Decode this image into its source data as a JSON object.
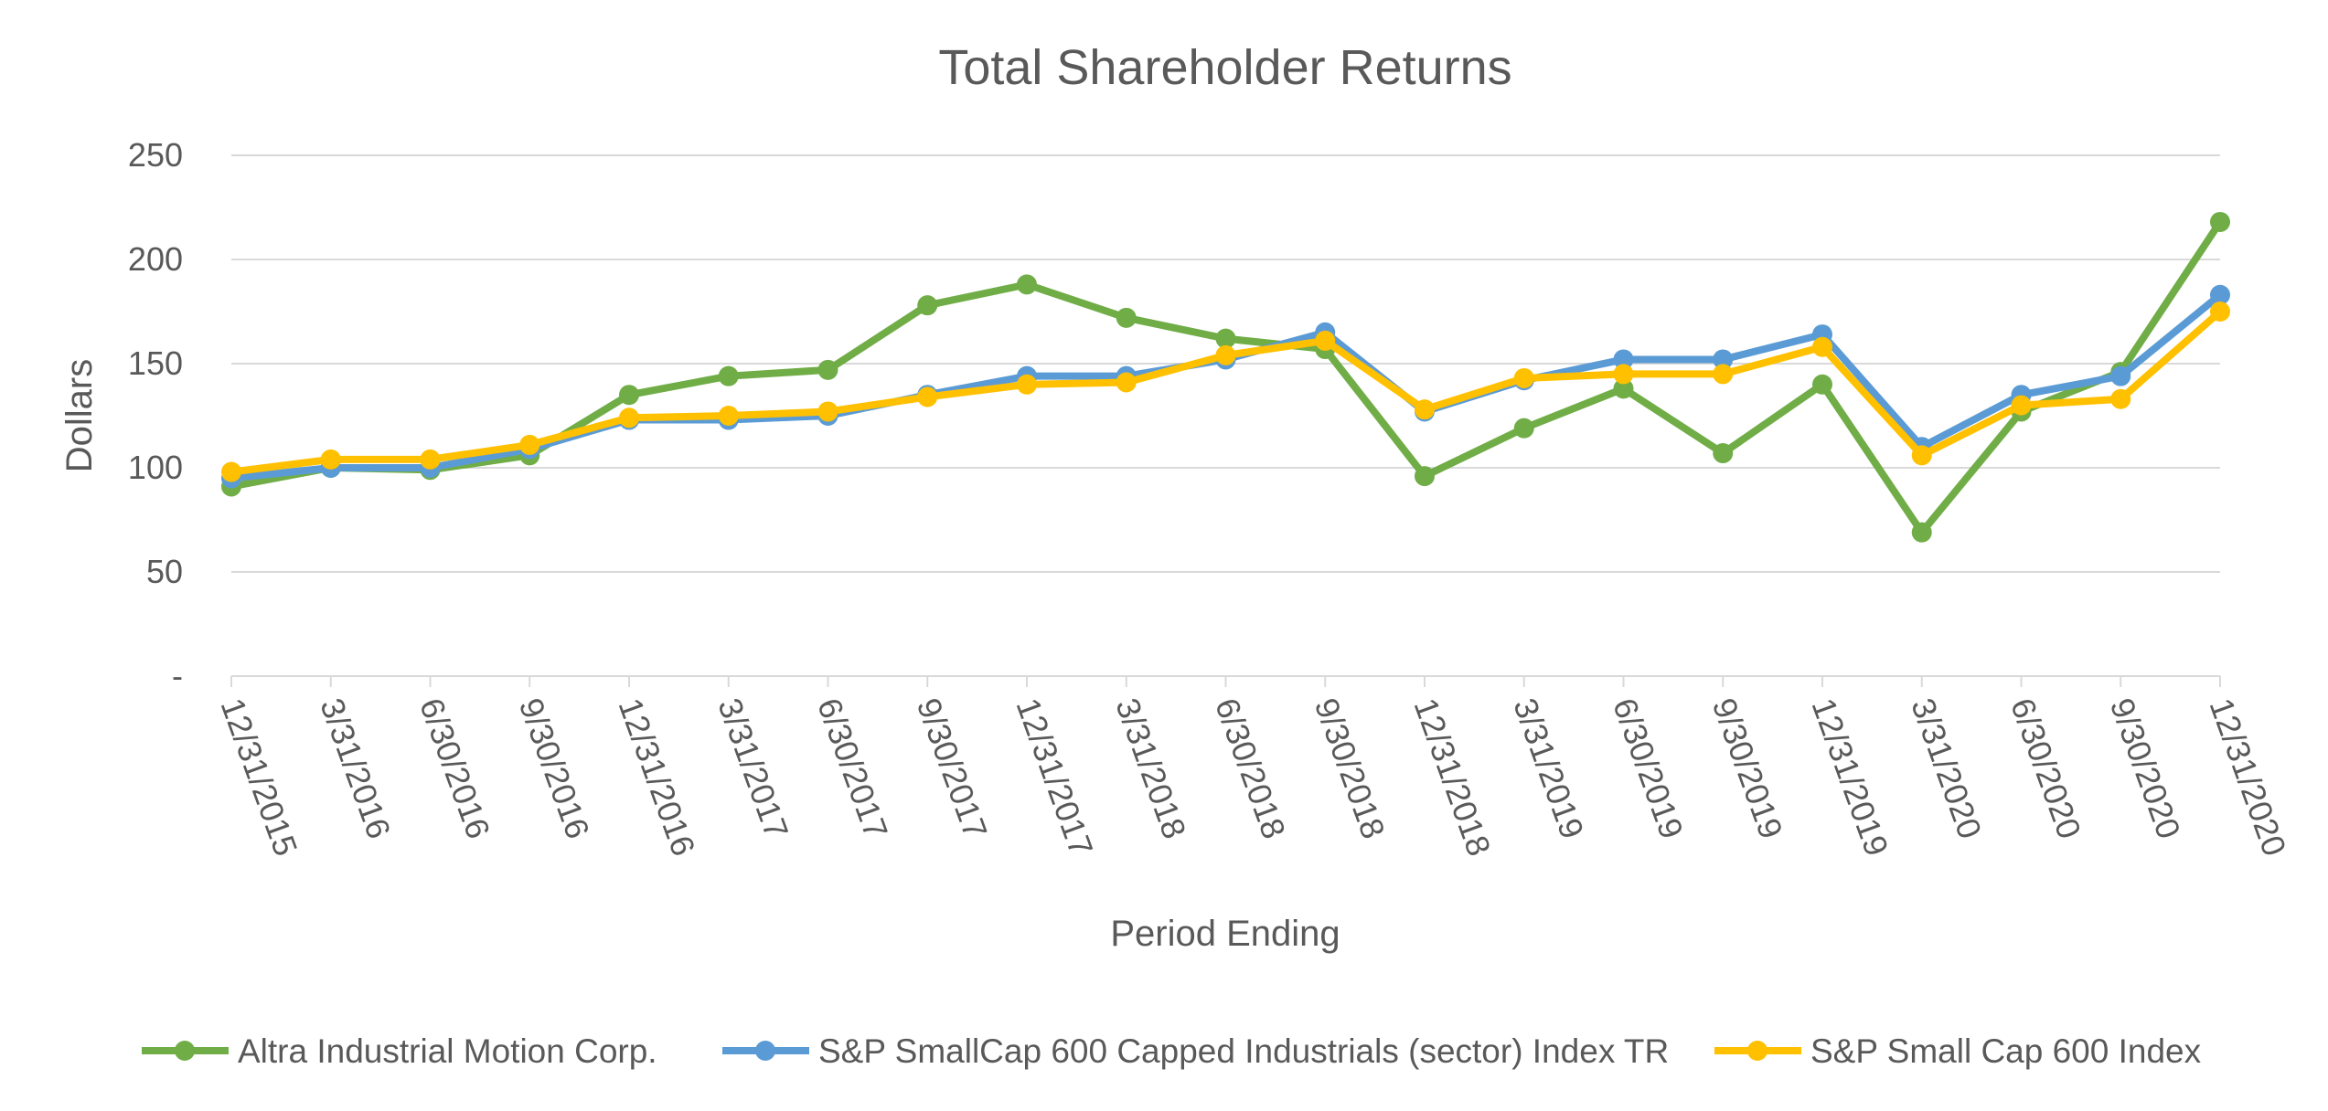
{
  "chart_data": {
    "type": "line",
    "title": "Total Shareholder Returns",
    "xlabel": "Period Ending",
    "ylabel": "Dollars",
    "ylim": [
      0,
      250
    ],
    "yticks": [
      {
        "value": 0,
        "label": "-"
      },
      {
        "value": 50,
        "label": "50"
      },
      {
        "value": 100,
        "label": "100"
      },
      {
        "value": 150,
        "label": "150"
      },
      {
        "value": 200,
        "label": "200"
      },
      {
        "value": 250,
        "label": "250"
      }
    ],
    "grid": true,
    "legend_position": "bottom",
    "categories": [
      "12/31/2015",
      "3/31/2016",
      "6/30/2016",
      "9/30/2016",
      "12/31/2016",
      "3/31/2017",
      "6/30/2017",
      "9/30/2017",
      "12/31/2017",
      "3/31/2018",
      "6/30/2018",
      "9/30/2018",
      "12/31/2018",
      "3/31/2019",
      "6/30/2019",
      "9/30/2019",
      "12/31/2019",
      "3/31/2020",
      "6/30/2020",
      "9/30/2020",
      "12/31/2020"
    ],
    "series": [
      {
        "name": "Altra Industrial Motion Corp.",
        "color": "#70ad47",
        "values": [
          91,
          100,
          99,
          106,
          135,
          144,
          147,
          178,
          188,
          172,
          162,
          157,
          96,
          119,
          138,
          107,
          140,
          69,
          127,
          146,
          218
        ]
      },
      {
        "name": "S&P SmallCap 600 Capped Industrials (sector) Index TR",
        "color": "#5b9bd5",
        "values": [
          95,
          100,
          100,
          109,
          123,
          123,
          125,
          135,
          144,
          144,
          152,
          165,
          127,
          142,
          152,
          152,
          164,
          110,
          135,
          144,
          183
        ]
      },
      {
        "name": "S&P Small Cap 600 Index",
        "color": "#ffc000",
        "values": [
          98,
          104,
          104,
          111,
          124,
          125,
          127,
          134,
          140,
          141,
          154,
          161,
          128,
          143,
          145,
          145,
          158,
          106,
          130,
          133,
          175
        ]
      }
    ]
  }
}
